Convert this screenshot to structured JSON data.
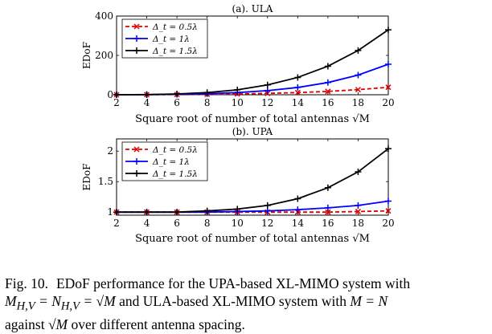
{
  "chart_data": [
    {
      "type": "line",
      "title": "(a). ULA",
      "xlabel": "Square root of number of total antennas √M",
      "ylabel": "EDoF",
      "x": [
        2,
        4,
        6,
        8,
        10,
        12,
        14,
        16,
        18,
        20
      ],
      "xlim": [
        2,
        20
      ],
      "ylim": [
        0,
        400
      ],
      "yticks": [
        "0",
        "200",
        "400"
      ],
      "xticks": [
        "2",
        "4",
        "6",
        "8",
        "10",
        "12",
        "14",
        "16",
        "18",
        "20"
      ],
      "grid": false,
      "legend_position": "top-left",
      "series": [
        {
          "name": "Δ_t = 0.5λ",
          "color": "#e00000",
          "dash": true,
          "marker": "x",
          "values": [
            0.1,
            0.4,
            1,
            2,
            4,
            7,
            11,
            17,
            26,
            38
          ]
        },
        {
          "name": "Δ_t = 1λ",
          "color": "#0000ff",
          "dash": false,
          "marker": "+",
          "values": [
            0.1,
            0.5,
            2,
            5,
            11,
            21,
            37,
            62,
            100,
            155
          ]
        },
        {
          "name": "Δ_t = 1.5λ",
          "color": "#000000",
          "dash": false,
          "marker": "+",
          "values": [
            0.1,
            0.8,
            4,
            11,
            25,
            50,
            88,
            145,
            225,
            330
          ]
        }
      ]
    },
    {
      "type": "line",
      "title": "(b). UPA",
      "xlabel": "Square root of number of total antennas √M",
      "ylabel": "EDoF",
      "x": [
        2,
        4,
        6,
        8,
        10,
        12,
        14,
        16,
        18,
        20
      ],
      "xlim": [
        2,
        20
      ],
      "ylim": [
        0.95,
        2.2
      ],
      "yticks": [
        "1",
        "1.5",
        "2"
      ],
      "xticks": [
        "2",
        "4",
        "6",
        "8",
        "10",
        "12",
        "14",
        "16",
        "18",
        "20"
      ],
      "grid": false,
      "legend_position": "top-left",
      "series": [
        {
          "name": "Δ_t = 0.5λ",
          "color": "#e00000",
          "dash": true,
          "marker": "x",
          "values": [
            1.0,
            1.0,
            1.0,
            1.0,
            1.0,
            1.0,
            1.0,
            1.0,
            1.01,
            1.02
          ]
        },
        {
          "name": "Δ_t = 1λ",
          "color": "#0000ff",
          "dash": false,
          "marker": "+",
          "values": [
            1.0,
            1.0,
            1.0,
            1.0,
            1.01,
            1.02,
            1.04,
            1.07,
            1.11,
            1.18
          ]
        },
        {
          "name": "Δ_t = 1.5λ",
          "color": "#000000",
          "dash": false,
          "marker": "+",
          "values": [
            1.0,
            1.0,
            1.0,
            1.02,
            1.05,
            1.11,
            1.22,
            1.4,
            1.66,
            2.04
          ]
        }
      ]
    }
  ],
  "caption": {
    "label": "Fig. 10.",
    "line1": "EDoF performance for the UPA-based XL-MIMO system with",
    "line2_a": "M",
    "line2_sub1": "H,V",
    "line2_b": " = N",
    "line2_sub2": "H,V",
    "line2_c": " = √M",
    "line2_d": " and ULA-based XL-MIMO system with ",
    "line2_e": "M = N",
    "line3_a": "against ",
    "line3_b": "√M",
    "line3_c": " over different antenna spacing."
  }
}
